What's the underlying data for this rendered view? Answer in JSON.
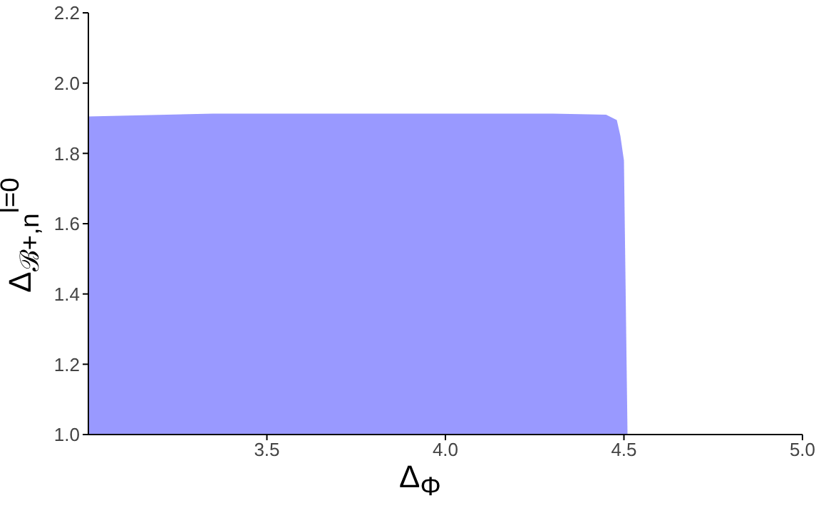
{
  "chart_data": {
    "type": "area",
    "xlabel": "Δ$_{Φ}$",
    "ylabel": "Δ$_{ℬ+,n}$$^{l=0}$",
    "x": [
      3.0,
      3.35,
      4.3,
      4.45,
      4.48,
      4.49,
      4.5,
      4.51
    ],
    "series": [
      {
        "color": "#9999ff",
        "values": [
          1.905,
          1.913,
          1.913,
          1.91,
          1.895,
          1.85,
          1.78,
          1.0
        ]
      }
    ],
    "xlim": [
      3.0,
      5.0
    ],
    "xticks": [
      3.5,
      {
        "value": 4,
        "label": "4.0"
      },
      4.5,
      {
        "value": 5,
        "label": "5.0"
      }
    ],
    "ylim": [
      1.0,
      2.2
    ],
    "yticks": [
      {
        "value": 1,
        "label": "1.0"
      },
      1.2,
      1.4,
      1.6,
      1.8,
      {
        "value": 2,
        "label": "2.0"
      },
      2.2
    ],
    "grid": false,
    "legend": false
  }
}
